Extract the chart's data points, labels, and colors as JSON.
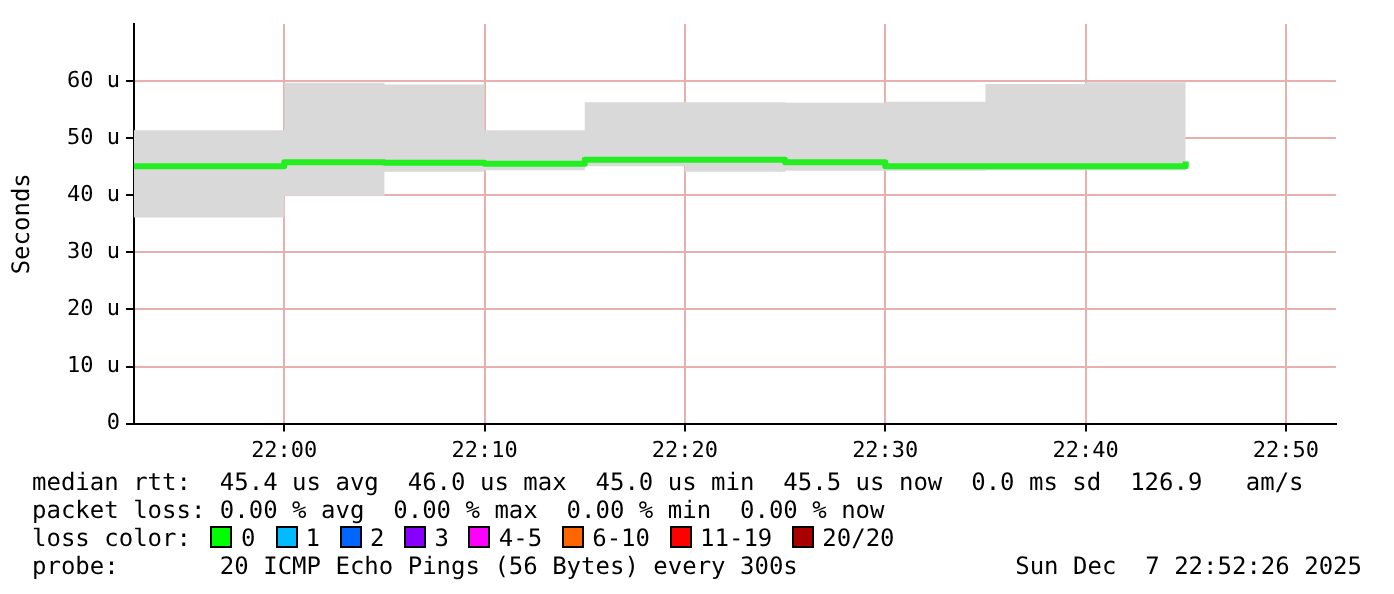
{
  "chart_data": {
    "type": "step",
    "ylabel": "Seconds",
    "x": [
      21.916667,
      22.0,
      22.083333,
      22.166667,
      22.25,
      22.333333,
      22.416667,
      22.5,
      22.583333,
      22.666667,
      22.75
    ],
    "series": [
      {
        "color": "#22ee22",
        "values": [
          45.1,
          45.8,
          45.7,
          45.5,
          46.2,
          46.2,
          45.8,
          45.1,
          45.1,
          45.1,
          45.9
        ],
        "lower": [
          36.1,
          39.9,
          44.1,
          44.4,
          45.1,
          44.1,
          44.3,
          44.3,
          44.4,
          44.4,
          44.2
        ],
        "upper": [
          51.4,
          59.7,
          59.4,
          51.4,
          56.3,
          56.3,
          56.2,
          56.4,
          59.5,
          59.8,
          52.8
        ]
      }
    ],
    "xlim": [
      21.875,
      22.875
    ],
    "xticks": [
      {
        "value": 22.0,
        "label": "22:00"
      },
      {
        "value": 22.166667,
        "label": "22:10"
      },
      {
        "value": 22.333333,
        "label": "22:20"
      },
      {
        "value": 22.5,
        "label": "22:30"
      },
      {
        "value": 22.666667,
        "label": "22:40"
      },
      {
        "value": 22.833333,
        "label": "22:50"
      }
    ],
    "ylim": [
      0,
      70
    ],
    "yticks": [
      {
        "value": 0,
        "label": "0"
      },
      {
        "value": 10,
        "label": "10 u"
      },
      {
        "value": 20,
        "label": "20 u"
      },
      {
        "value": 30,
        "label": "30 u"
      },
      {
        "value": 40,
        "label": "40 u"
      },
      {
        "value": 50,
        "label": "50 u"
      },
      {
        "value": 60,
        "label": "60 u"
      }
    ],
    "grid": true,
    "annotations": [
      "median rtt:  45.4 us avg  46.0 us max  45.0 us min  45.5 us now  0.0 ms sd  126.9   am/s",
      "packet loss: 0.00 % avg  0.00 % max  0.00 % min  0.00 % now",
      "loss color:",
      "0",
      "1",
      "2",
      "3",
      "4-5",
      "6-10",
      "11-19",
      "20/20",
      "probe:       20 ICMP Echo Pings (56 Bytes) every 300s",
      "Sun Dec  7 22:52:26 2025"
    ]
  }
}
